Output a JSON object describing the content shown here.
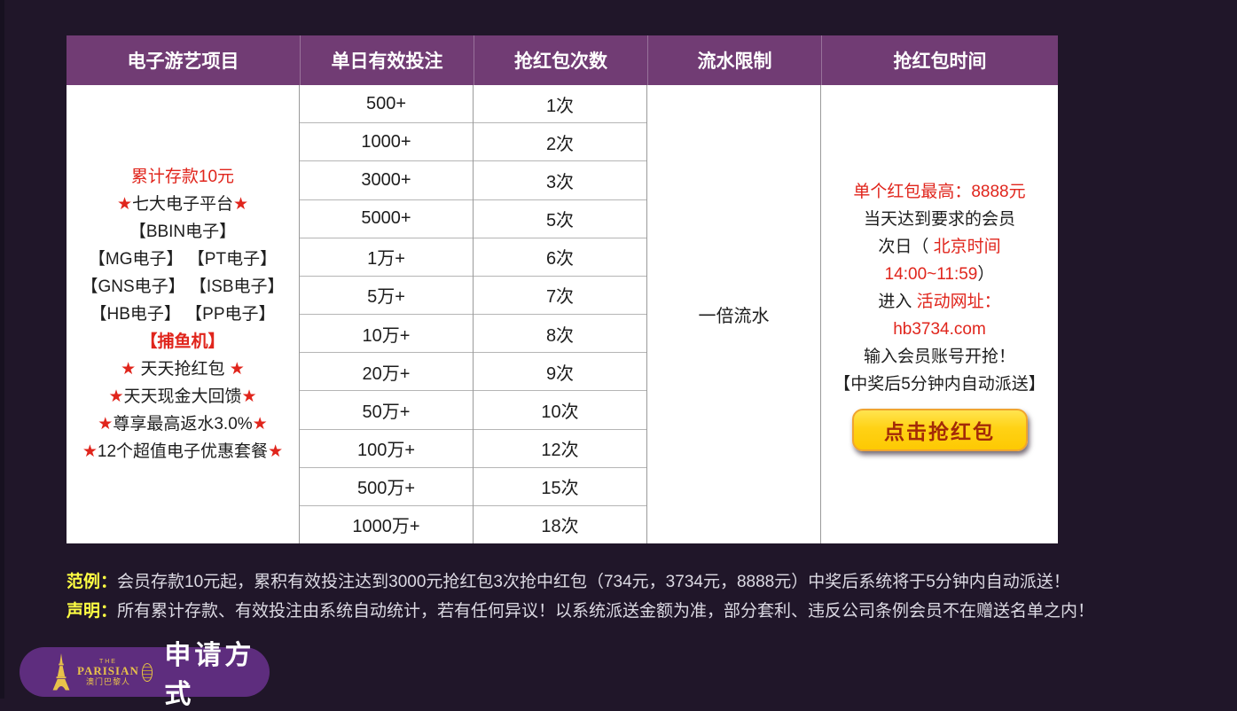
{
  "colors": {
    "background": "#201629",
    "header_bg": "#713c74",
    "accent_red": "#e0251c",
    "note_label_yellow": "#ffff43",
    "button_yellow": "#ffd215",
    "button_text": "#a32a08",
    "badge_purple": "#5e2d7e",
    "logo_gold": "#e8c24a"
  },
  "table": {
    "headers": [
      "电子游艺项目",
      "单日有效投注",
      "抢红包次数",
      "流水限制",
      "抢红包时间"
    ],
    "project_lines": [
      [
        {
          "text": "累计存款10元",
          "style": "red"
        }
      ],
      [
        {
          "text": "★",
          "style": "red"
        },
        {
          "text": "七大电子平台",
          "style": "black"
        },
        {
          "text": "★",
          "style": "red"
        }
      ],
      [
        {
          "text": "【BBIN电子】",
          "style": "black"
        }
      ],
      [
        {
          "text": "【MG电子】 【PT电子】",
          "style": "black"
        }
      ],
      [
        {
          "text": "【GNS电子】 【ISB电子】",
          "style": "black"
        }
      ],
      [
        {
          "text": "【HB电子】 【PP电子】",
          "style": "black"
        }
      ],
      [
        {
          "text": "【捕鱼机】",
          "style": "red-bold"
        }
      ],
      [
        {
          "text": "★ ",
          "style": "red"
        },
        {
          "text": "天天抢红包",
          "style": "black"
        },
        {
          "text": " ★",
          "style": "red"
        }
      ],
      [
        {
          "text": "★",
          "style": "red"
        },
        {
          "text": "天天现金大回馈",
          "style": "black"
        },
        {
          "text": "★",
          "style": "red"
        }
      ],
      [
        {
          "text": "★",
          "style": "red"
        },
        {
          "text": "尊享最高返水3.0%",
          "style": "black"
        },
        {
          "text": "★",
          "style": "red"
        }
      ],
      [
        {
          "text": "★",
          "style": "red"
        },
        {
          "text": "12个超值电子优惠套餐",
          "style": "black"
        },
        {
          "text": "★",
          "style": "red"
        }
      ]
    ],
    "rows": [
      {
        "bet": "500+",
        "times": "1次"
      },
      {
        "bet": "1000+",
        "times": "2次"
      },
      {
        "bet": "3000+",
        "times": "3次"
      },
      {
        "bet": "5000+",
        "times": "5次"
      },
      {
        "bet": "1万+",
        "times": "6次"
      },
      {
        "bet": "5万+",
        "times": "7次"
      },
      {
        "bet": "10万+",
        "times": "8次"
      },
      {
        "bet": "20万+",
        "times": "9次"
      },
      {
        "bet": "50万+",
        "times": "10次"
      },
      {
        "bet": "100万+",
        "times": "12次"
      },
      {
        "bet": "500万+",
        "times": "15次"
      },
      {
        "bet": "1000万+",
        "times": "18次"
      }
    ],
    "turnover_limit": "一倍流水",
    "time_lines": [
      [
        {
          "text": "单个红包最高：8888元",
          "style": "red"
        }
      ],
      [
        {
          "text": "当天达到要求的会员",
          "style": "black"
        }
      ],
      [
        {
          "text": "次日（ ",
          "style": "black"
        },
        {
          "text": "北京时间",
          "style": "red"
        }
      ],
      [
        {
          "text": "14:00~11:59",
          "style": "red"
        },
        {
          "text": "）",
          "style": "black"
        }
      ],
      [
        {
          "text": "进入 ",
          "style": "black"
        },
        {
          "text": "活动网址：",
          "style": "red"
        }
      ],
      [
        {
          "text": "hb3734.com",
          "style": "red"
        }
      ],
      [
        {
          "text": "输入会员账号开抢！",
          "style": "black"
        }
      ],
      [
        {
          "text": "【中奖后5分钟内自动派送】",
          "style": "black"
        }
      ]
    ],
    "grab_button_label": "点击抢红包"
  },
  "notes": [
    {
      "label": "范例：",
      "text": "会员存款10元起，累积有效投注达到3000元抢红包3次抢中红包（734元，3734元，8888元）中奖后系统将于5分钟内自动派送！"
    },
    {
      "label": "声明：",
      "text": "所有累计存款、有效投注由系统自动统计，若有任何异议！以系统派送金额为准，部分套利、违反公司条例会员不在赠送名单之内！"
    }
  ],
  "badge": {
    "brand_top": "THE",
    "brand": "PARISIAN",
    "brand_sub": "澳门巴黎人",
    "label": "申请方式"
  }
}
